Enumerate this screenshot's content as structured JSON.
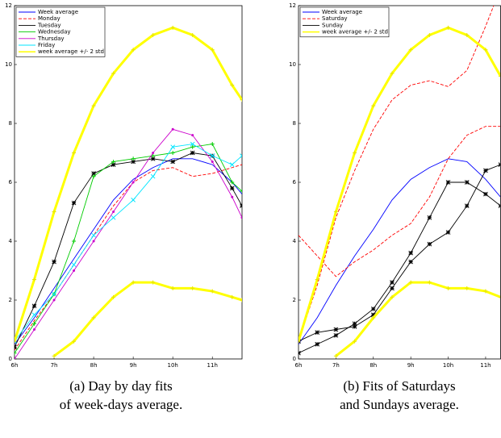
{
  "chart_data": [
    {
      "type": "line",
      "caption": [
        "(a) Day by day fits",
        "of week-days average."
      ],
      "legend": "upper left",
      "x": [
        6,
        6.5,
        7,
        7.5,
        8,
        8.5,
        9,
        9.5,
        10,
        10.5,
        11,
        11.5,
        11.75
      ],
      "xlim": [
        6,
        11.75
      ],
      "xticks": [
        {
          "value": 6,
          "label": "6h"
        },
        {
          "value": 7,
          "label": "7h"
        },
        {
          "value": 8,
          "label": "8h"
        },
        {
          "value": 9,
          "label": "9h"
        },
        {
          "value": 10,
          "label": "10h"
        },
        {
          "value": 11,
          "label": "11h"
        }
      ],
      "ylim": [
        0,
        12
      ],
      "yticks": [
        0,
        2,
        4,
        6,
        8,
        10,
        12
      ],
      "series": [
        {
          "name": "Week average",
          "color": "#0000ff",
          "style": "solid",
          "values": [
            0.5,
            1.4,
            2.4,
            3.4,
            4.4,
            5.4,
            6.1,
            6.5,
            6.8,
            6.8,
            6.6,
            6.0,
            5.6
          ]
        },
        {
          "name": "Monday",
          "color": "#ff0000",
          "style": "dashed",
          "values": [
            0.3,
            1.3,
            2.2,
            3.2,
            4.2,
            5.2,
            6.0,
            6.4,
            6.5,
            6.2,
            6.3,
            6.5,
            6.6
          ]
        },
        {
          "name": "Tuesday",
          "color": "#000000",
          "style": "solid",
          "marker": "star",
          "values": [
            0.4,
            1.8,
            3.3,
            5.3,
            6.3,
            6.6,
            6.7,
            6.8,
            6.7,
            7.0,
            6.9,
            5.8,
            5.2
          ]
        },
        {
          "name": "Wednesday",
          "color": "#00cc00",
          "style": "solid",
          "marker": "plus",
          "values": [
            0.2,
            1.2,
            2.2,
            4.0,
            6.2,
            6.7,
            6.8,
            6.9,
            7.0,
            7.2,
            7.3,
            6.0,
            5.7
          ]
        },
        {
          "name": "Thursday",
          "color": "#cc00cc",
          "style": "solid",
          "marker": "dot",
          "values": [
            0.0,
            1.0,
            2.0,
            3.0,
            4.0,
            5.0,
            6.0,
            7.0,
            7.8,
            7.6,
            6.7,
            5.5,
            4.8
          ]
        },
        {
          "name": "Friday",
          "color": "#00e5ff",
          "style": "solid",
          "marker": "x",
          "values": [
            0.6,
            1.5,
            2.2,
            3.2,
            4.2,
            4.8,
            5.4,
            6.2,
            7.2,
            7.3,
            6.9,
            6.6,
            6.9
          ]
        },
        {
          "name": "week average +/- 2 std",
          "color": "#ffff00",
          "style": "solid",
          "marker": "plus",
          "width": 3,
          "values": [
            0.6,
            2.7,
            5.0,
            7.0,
            8.6,
            9.7,
            10.5,
            11.0,
            11.25,
            11.0,
            10.5,
            9.3,
            8.8
          ],
          "lower_values": [
            null,
            null,
            0.1,
            0.6,
            1.4,
            2.1,
            2.6,
            2.6,
            2.4,
            2.4,
            2.3,
            2.1,
            2.0
          ]
        }
      ]
    },
    {
      "type": "line",
      "caption": [
        "(b) Fits of Saturdays",
        "and Sundays average."
      ],
      "legend": "upper left",
      "x": [
        6,
        6.5,
        7,
        7.5,
        8,
        8.5,
        9,
        9.5,
        10,
        10.5,
        11,
        11.4
      ],
      "xlim": [
        6,
        11.4
      ],
      "xticks": [
        {
          "value": 6,
          "label": "6h"
        },
        {
          "value": 7,
          "label": "7h"
        },
        {
          "value": 8,
          "label": "8h"
        },
        {
          "value": 9,
          "label": "9h"
        },
        {
          "value": 10,
          "label": "10h"
        },
        {
          "value": 11,
          "label": "11h"
        }
      ],
      "ylim": [
        0,
        12
      ],
      "yticks": [
        0,
        2,
        4,
        6,
        8,
        10,
        12
      ],
      "series": [
        {
          "name": "Week average",
          "color": "#0000ff",
          "style": "solid",
          "values": [
            0.5,
            1.4,
            2.5,
            3.5,
            4.4,
            5.4,
            6.1,
            6.5,
            6.8,
            6.7,
            6.1,
            5.5
          ]
        },
        {
          "name": "Saturday",
          "color": "#ff0000",
          "style": "dashed",
          "values": [
            4.2,
            3.5,
            2.8,
            3.3,
            3.7,
            4.2,
            4.6,
            5.5,
            6.8,
            7.6,
            7.9,
            7.9
          ]
        },
        {
          "color": "#ff0000",
          "style": "dashed",
          "values": [
            0.6,
            2.5,
            4.8,
            6.4,
            7.8,
            8.8,
            9.3,
            9.45,
            9.25,
            9.8,
            11.3,
            12.6
          ]
        },
        {
          "name": "Sunday",
          "color": "#000000",
          "style": "solid",
          "marker": "star",
          "values": [
            0.2,
            0.5,
            0.8,
            1.2,
            1.7,
            2.6,
            3.6,
            4.8,
            6.0,
            6.0,
            5.6,
            5.2
          ]
        },
        {
          "color": "#000000",
          "style": "solid",
          "marker": "star",
          "values": [
            0.6,
            0.9,
            1.0,
            1.1,
            1.5,
            2.4,
            3.3,
            3.9,
            4.3,
            5.2,
            6.4,
            6.6
          ]
        },
        {
          "name": "week average +/- 2 std",
          "color": "#ffff00",
          "style": "solid",
          "marker": "plus",
          "width": 3,
          "values": [
            0.6,
            2.7,
            5.0,
            7.0,
            8.6,
            9.7,
            10.5,
            11.0,
            11.25,
            11.0,
            10.5,
            9.6
          ],
          "lower_values": [
            null,
            null,
            0.1,
            0.6,
            1.4,
            2.1,
            2.6,
            2.6,
            2.4,
            2.4,
            2.3,
            2.1
          ]
        }
      ]
    }
  ]
}
